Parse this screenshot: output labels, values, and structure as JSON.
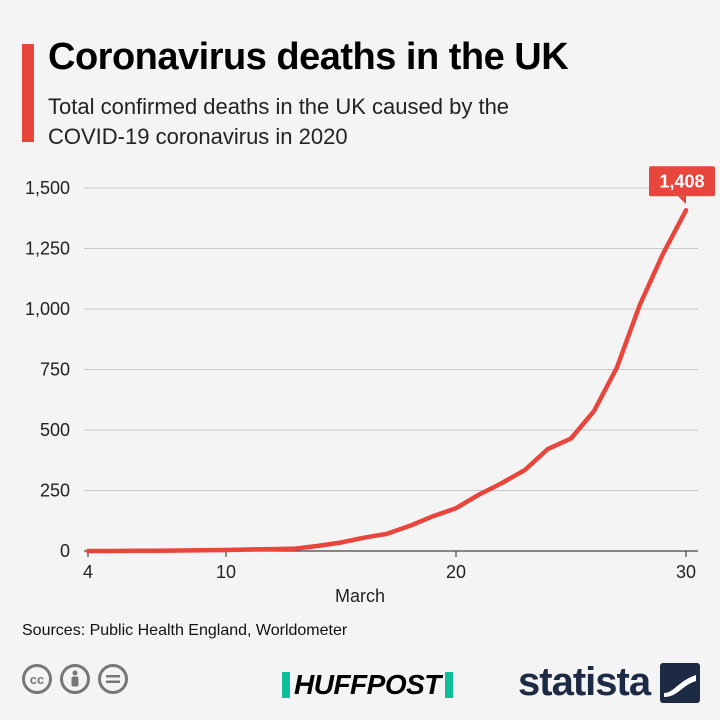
{
  "header": {
    "title": "Coronavirus deaths in the UK",
    "subtitle": "Total confirmed deaths in the UK caused by the COVID-19 coronavirus in 2020"
  },
  "footer": {
    "source": "Sources: Public Health England, Worldometer",
    "brand": "HUFFPOST",
    "statista": "statista"
  },
  "colors": {
    "accent": "#e8453c",
    "grid": "#c8c8c8",
    "text": "#222222"
  },
  "icons": [
    "cc-icon",
    "attribution-icon",
    "no-derivatives-icon",
    "statista-logo-icon"
  ],
  "chart_data": {
    "type": "line",
    "title": "Coronavirus deaths in the UK",
    "subtitle": "Total confirmed deaths in the UK caused by the COVID-19 coronavirus in 2020",
    "xlabel": "March",
    "ylabel": "",
    "xlim": [
      4,
      30
    ],
    "ylim": [
      0,
      1500
    ],
    "x_ticks": [
      4,
      10,
      20,
      30
    ],
    "y_ticks": [
      0,
      250,
      500,
      750,
      1000,
      1250,
      1500
    ],
    "y_tick_labels": [
      "0",
      "250",
      "500",
      "750",
      "1,000",
      "1,250",
      "1,500"
    ],
    "grid": true,
    "series": [
      {
        "color": "#e8453c",
        "x": [
          4,
          5,
          6,
          7,
          8,
          9,
          10,
          11,
          12,
          13,
          14,
          15,
          16,
          17,
          18,
          19,
          20,
          21,
          22,
          23,
          24,
          25,
          26,
          27,
          28,
          29,
          30
        ],
        "y": [
          0,
          0,
          1,
          1,
          2,
          3,
          4,
          6,
          8,
          10,
          21,
          35,
          55,
          71,
          104,
          144,
          177,
          233,
          281,
          335,
          422,
          465,
          578,
          759,
          1019,
          1228,
          1408
        ]
      }
    ],
    "annotations": [
      {
        "x": 30,
        "y": 1408,
        "text": "1,408"
      }
    ]
  }
}
